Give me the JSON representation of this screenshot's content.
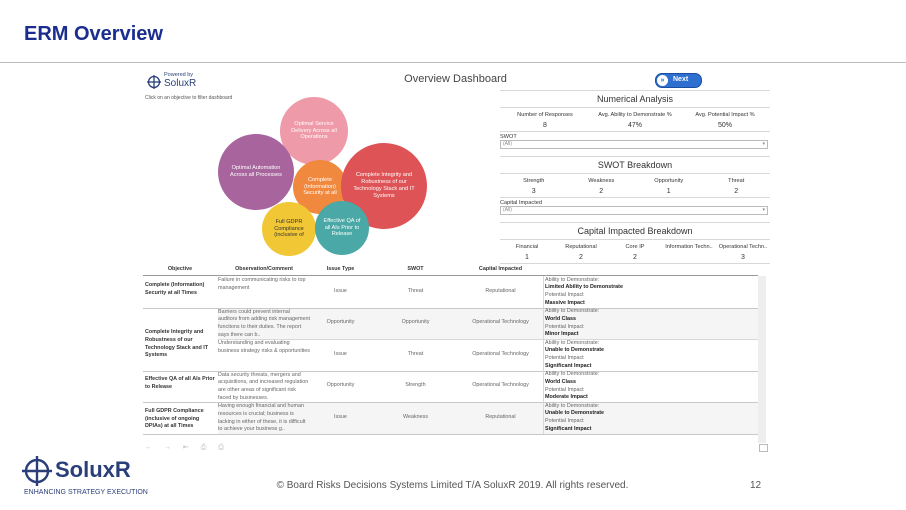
{
  "header": {
    "title": "ERM Overview"
  },
  "dashboard": {
    "logo": {
      "powered_by": "Powered by",
      "brand": "SoluxR"
    },
    "title": "Overview Dashboard",
    "instruction": "Click on an objective to filter dashboard",
    "next_button": "Next",
    "bubbles": [
      {
        "label": "Optimal Service Delivery Across all Operations",
        "color": "#ee9aa8"
      },
      {
        "label": "Optimal Automation Across all Processes",
        "color": "#a8659d"
      },
      {
        "label": "Complete (Information) Security at all",
        "color": "#f0883e"
      },
      {
        "label": "Complete Integrity and Robustness of our Technology Stack and IT Systems",
        "color": "#de5356"
      },
      {
        "label": "Full GDPR Compliance (inclusive of",
        "color": "#f1c736"
      },
      {
        "label": "Effective QA of all AIs Prior to Release",
        "color": "#4aa8a6"
      }
    ],
    "numerical_analysis": {
      "title": "Numerical Analysis",
      "headers": [
        "Number of Responses",
        "Avg. Ability to Demonstrate %",
        "Avg. Potential Impact %"
      ],
      "values": [
        8,
        "47%",
        "50%"
      ]
    },
    "swot_filter": {
      "label": "SWOT",
      "value": "(All)"
    },
    "swot_breakdown": {
      "title": "SWOT Breakdown",
      "headers": [
        "Strength",
        "Weakness",
        "Opportunity",
        "Threat"
      ],
      "values": [
        3,
        2,
        1,
        2
      ]
    },
    "capital_filter": {
      "label": "Capital Impacted",
      "value": "(All)"
    },
    "capital_breakdown": {
      "title": "Capital Impacted Breakdown",
      "headers": [
        "Financial",
        "Reputational",
        "Core IP",
        "Information Techn..",
        "Operational Techn.."
      ],
      "values": [
        1,
        2,
        2,
        null,
        3
      ]
    },
    "table": {
      "headers": [
        "Objective",
        "Observation/Comment",
        "Issue Type",
        "SWOT",
        "Capital Impacted"
      ],
      "groups": [
        {
          "objective": "Complete (Information) Security at all Times",
          "rows": [
            {
              "observation": "Failure in communicating risks to top management",
              "issue_type": "Issue",
              "swot": "Threat",
              "capital": "Reputational",
              "impact": [
                "Ability to Demonstrate:",
                "Limited Ability to Demonstrate",
                "Potential Impact",
                "Massive Impact"
              ]
            }
          ]
        },
        {
          "objective": "Complete Integrity and Robustness of our Technology Stack and IT Systems",
          "rows": [
            {
              "observation": "Barriers could prevent internal auditors from adding risk management functions to their duties. The report says there can b..",
              "issue_type": "Opportunity",
              "swot": "Opportunity",
              "capital": "Operational Technology",
              "impact": [
                "Ability to Demonstrate:",
                "World Class",
                "Potential Impact",
                "Minor Impact"
              ]
            },
            {
              "observation": "Understanding and evaluating business strategy risks & opportunities",
              "issue_type": "Issue",
              "swot": "Threat",
              "capital": "Operational Technology",
              "impact": [
                "Ability to Demonstrate:",
                "Unable to Demonstrate",
                "Potential Impact",
                "Significant Impact"
              ]
            }
          ]
        },
        {
          "objective": "Effective QA of all AIs Prior to Release",
          "rows": [
            {
              "observation": "Data security threats, mergers and acquisitions, and increased regulation are other areas of significant risk faced by businesses.",
              "issue_type": "Opportunity",
              "swot": "Strength",
              "capital": "Operational Technology",
              "impact": [
                "Ability to Demonstrate:",
                "World Class",
                "Potential Impact",
                "Moderate Impact"
              ]
            }
          ]
        },
        {
          "objective": "Full GDPR Compliance (inclusive of ongoing DPIAs) at all Times",
          "rows": [
            {
              "observation": "Having enough financial and human resources is crucial; business is lacking in either of these, it is difficult to achieve your business g..",
              "issue_type": "Issue",
              "swot": "Weakness",
              "capital": "Reputational",
              "impact": [
                "Ability to Demonstrate:",
                "Unable to Demonstrate",
                "Potential Impact",
                "Significant Impact"
              ]
            }
          ]
        }
      ]
    }
  },
  "footer": {
    "brand": "SoluxR",
    "tagline": "ENHANCING STRATEGY EXECUTION",
    "copyright": "© Board Risks Decisions Systems Limited T/A SoluxR 2019. All rights reserved.",
    "page": "12"
  }
}
